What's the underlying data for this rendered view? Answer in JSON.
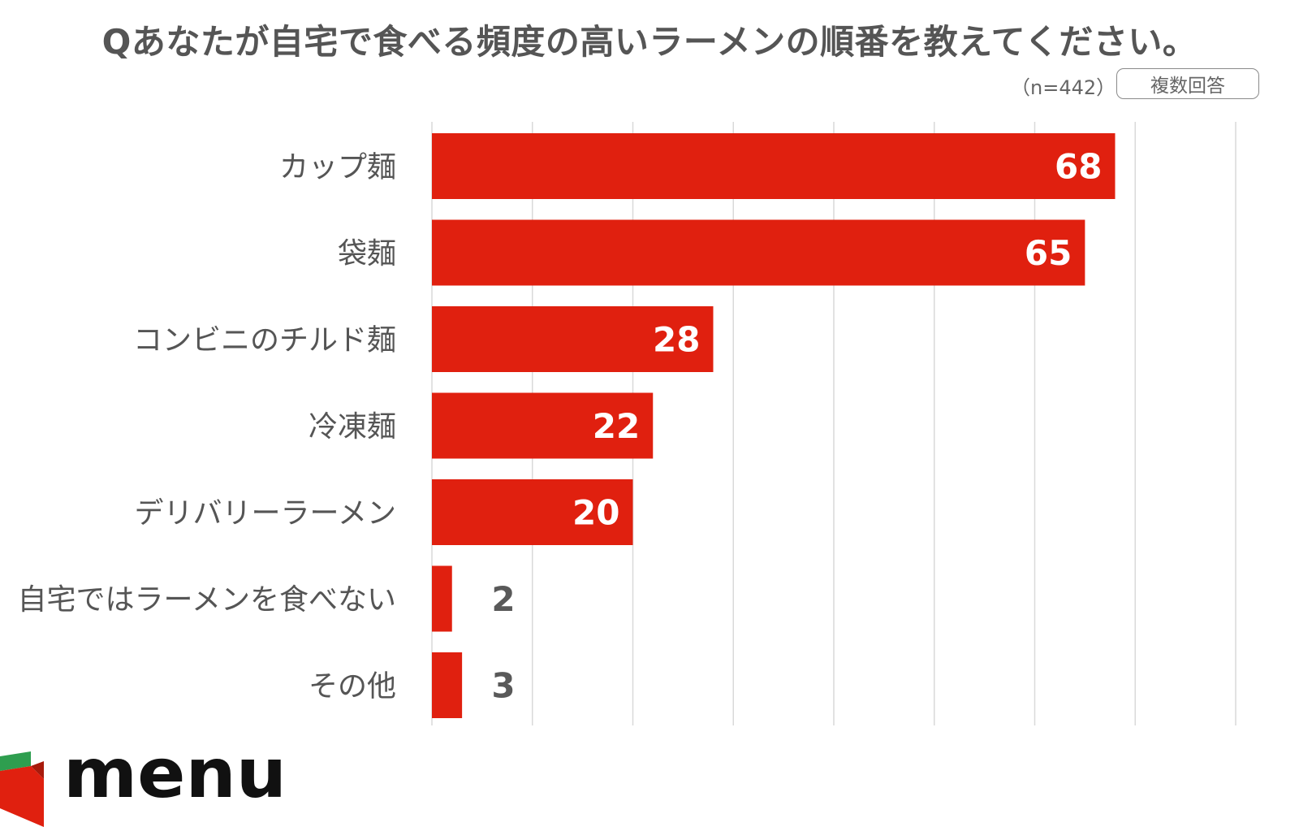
{
  "header": {
    "title": "Qあなたが自宅で食べる頻度の高いラーメンの順番を教えてください。",
    "sample_note": "（n=442）",
    "answer_type": "複数回答"
  },
  "logo": {
    "text": "menu",
    "icon": "menu-logo-icon"
  },
  "colors": {
    "bar": "#e0200f",
    "grid": "#d9d9d9",
    "label_text": "#555555",
    "value_inside": "#ffffff",
    "value_outside": "#595959"
  },
  "chart_data": {
    "type": "bar",
    "orientation": "horizontal",
    "title": "Qあなたが自宅で食べる頻度の高いラーメンの順番を教えてください。",
    "categories": [
      "カップ麺",
      "袋麺",
      "コンビニのチルド麺",
      "冷凍麺",
      "デリバリーラーメン",
      "自宅ではラーメンを食べない",
      "その他"
    ],
    "values": [
      68,
      65,
      28,
      22,
      20,
      2,
      3
    ],
    "xlim": [
      0,
      80
    ],
    "grid_step": 10,
    "grid": true,
    "xlabel": "",
    "ylabel": ""
  }
}
